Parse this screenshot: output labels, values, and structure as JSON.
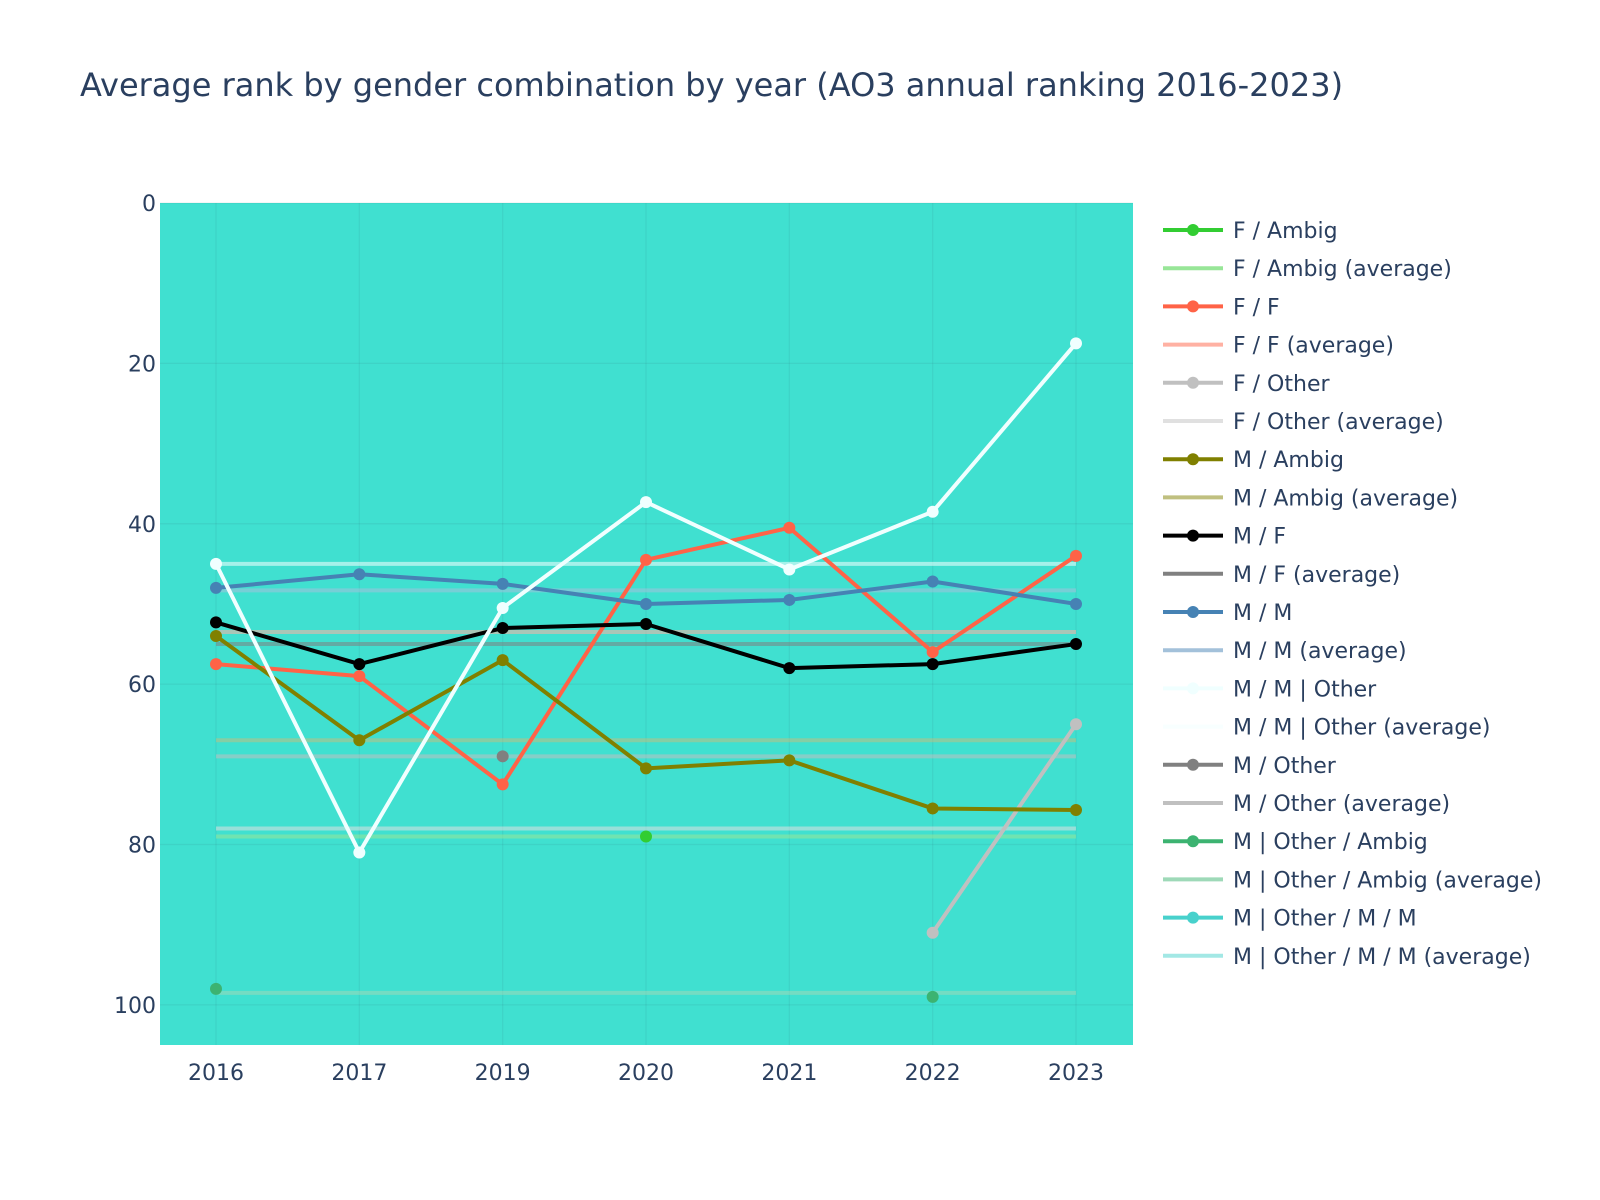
{
  "chart_data": {
    "type": "line",
    "title": "Average rank by gender combination by year (AO3 annual ranking 2016-2023)",
    "xlabel": "",
    "ylabel": "",
    "categories": [
      "2016",
      "2017",
      "2019",
      "2020",
      "2021",
      "2022",
      "2023"
    ],
    "y_axis": {
      "range": [
        105,
        0
      ],
      "reversed": true,
      "ticks": [
        0,
        20,
        40,
        60,
        80,
        100
      ]
    },
    "plot_background": "#40e0d0",
    "grid": true,
    "legend_position": "right",
    "series": [
      {
        "name": "F / Ambig",
        "color": "#32cd32",
        "values": [
          null,
          null,
          null,
          79,
          null,
          null,
          null
        ]
      },
      {
        "name": "F / Ambig (average)",
        "color": "#98e698",
        "is_average": true,
        "average": 79
      },
      {
        "name": "F / F",
        "color": "#ff6347",
        "values": [
          57.5,
          59,
          72.5,
          44.5,
          40.5,
          56,
          44
        ]
      },
      {
        "name": "F / F (average)",
        "color": "#ffb1a3",
        "is_average": true,
        "average": 53.5
      },
      {
        "name": "F / Other",
        "color": "#c0c0c0",
        "values": [
          null,
          null,
          null,
          null,
          null,
          91,
          65
        ]
      },
      {
        "name": "F / Other (average)",
        "color": "#e0e0e0",
        "is_average": true,
        "average": 78
      },
      {
        "name": "M / Ambig",
        "color": "#808000",
        "values": [
          54,
          67,
          57,
          70.5,
          69.5,
          75.5,
          75.7
        ]
      },
      {
        "name": "M / Ambig (average)",
        "color": "#c0c080",
        "is_average": true,
        "average": 67
      },
      {
        "name": "M / F",
        "color": "#000000",
        "values": [
          52.3,
          57.5,
          53,
          52.5,
          58,
          57.5,
          55
        ]
      },
      {
        "name": "M / F (average)",
        "color": "#808080",
        "is_average": true,
        "average": 55
      },
      {
        "name": "M / M",
        "color": "#4682b4",
        "values": [
          48,
          46.3,
          47.5,
          50,
          49.5,
          47.2,
          50
        ]
      },
      {
        "name": "M / M (average)",
        "color": "#a3c1da",
        "is_average": true,
        "average": 48.3
      },
      {
        "name": "M / M | Other",
        "color": "#f0ffff",
        "values": [
          45,
          81,
          50.5,
          37.3,
          45.7,
          38.5,
          17.5
        ]
      },
      {
        "name": "M / M | Other (average)",
        "color": "#f8ffff",
        "is_average": true,
        "average": 45
      },
      {
        "name": "M / Other",
        "color": "#808080",
        "values": [
          null,
          null,
          69,
          null,
          null,
          null,
          null
        ]
      },
      {
        "name": "M / Other (average)",
        "color": "#c0c0c0",
        "is_average": true,
        "average": 69
      },
      {
        "name": "M | Other / Ambig",
        "color": "#3cb371",
        "values": [
          98,
          null,
          null,
          null,
          null,
          99,
          null
        ]
      },
      {
        "name": "M | Other / Ambig (average)",
        "color": "#9ed9b8",
        "is_average": true,
        "average": 98.5
      },
      {
        "name": "M | Other / M / M",
        "color": "#48d1cc",
        "values": [
          null,
          null,
          null,
          null,
          null,
          null,
          null
        ]
      },
      {
        "name": "M | Other / M / M (average)",
        "color": "#a3e8e5",
        "is_average": true,
        "average": null
      }
    ]
  }
}
